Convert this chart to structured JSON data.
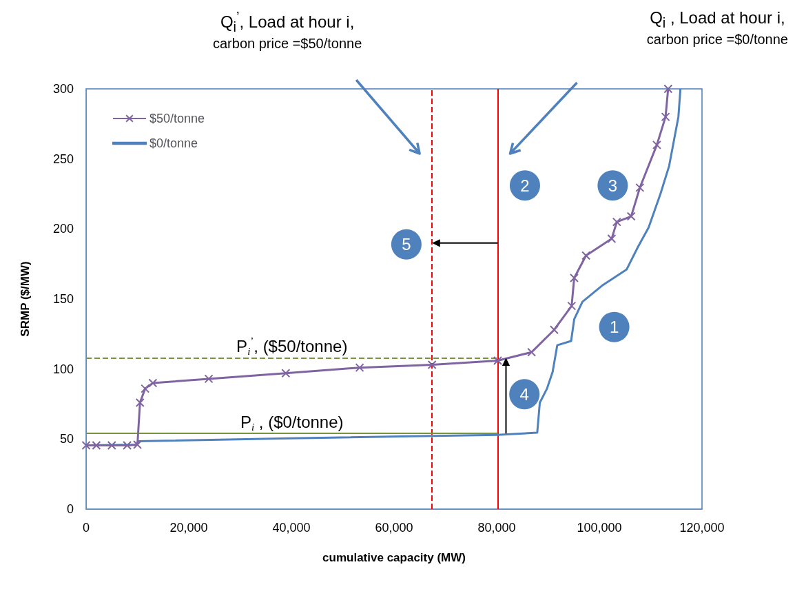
{
  "chart_data": {
    "type": "line",
    "xlabel": "cumulative capacity (MW)",
    "ylabel": "SRMP ($/MW)",
    "xlim": [
      0,
      120000
    ],
    "xticks": [
      0,
      {
        "value": 20000,
        "label": "20,000"
      },
      {
        "value": 40000,
        "label": "40,000"
      },
      {
        "value": 60000,
        "label": "60,000"
      },
      {
        "value": 80000,
        "label": "80,000"
      },
      {
        "value": 100000,
        "label": "100,000"
      },
      {
        "value": 120000,
        "label": "120,000"
      }
    ],
    "ylim": [
      0,
      300
    ],
    "yticks": [
      0,
      50,
      100,
      150,
      200,
      250,
      300
    ],
    "grid": false,
    "legend": "top left",
    "series": [
      {
        "name": "$50/tonne",
        "color": "#8064a2",
        "marker": "cross",
        "x": [
          0,
          2000,
          5000,
          8000,
          10000,
          10500,
          11500,
          13000,
          23900,
          38900,
          53300,
          67400,
          80200,
          86800,
          91200,
          94600,
          95100,
          97400,
          102400,
          103400,
          106200,
          107900,
          111200,
          112900,
          113400
        ],
        "values": [
          45.5,
          45.5,
          45.5,
          45.5,
          46,
          76,
          86,
          90,
          93,
          97,
          101,
          103,
          106,
          112,
          128,
          145,
          165,
          181,
          193,
          205,
          209,
          229.5,
          260,
          280,
          300
        ]
      },
      {
        "name": "$0/tonne",
        "color": "#4f81bd",
        "marker": "none",
        "x": [
          0,
          10000,
          10100,
          40000,
          80200,
          87900,
          88400,
          89800,
          90900,
          91800,
          94500,
          95100,
          96700,
          100700,
          105300,
          107500,
          109600,
          111900,
          113600,
          115400,
          115800
        ],
        "values": [
          45.5,
          46,
          48.4,
          50.5,
          53,
          54.6,
          76,
          86,
          98,
          117,
          120,
          135.5,
          148,
          160,
          171,
          187,
          201,
          225,
          245,
          280,
          300
        ]
      }
    ],
    "ref_lines": [
      {
        "axis": "x",
        "value": 67400,
        "color": "#ff0000",
        "line_style": "dashed"
      },
      {
        "axis": "x",
        "value": 80200,
        "color": "#ff0000",
        "line_style": "solid"
      },
      {
        "axis": "y",
        "value": 108,
        "label": "P$_{i}$$^{’}$, ($50/tonne)",
        "color": "#77933c",
        "line_style": "dashed"
      },
      {
        "axis": "y",
        "value": 54,
        "label": "P$_{i}$ , ($0/tonne)",
        "color": "#77933c",
        "line_style": "solid"
      }
    ],
    "annotations": [
      "Q$_{i}$$^{’}$, Load at hour i,\ncarbon price =$50/tonne",
      "Q$_{i}$ , Load at hour i,\ncarbon price =$0/tonne",
      {
        "text": "1",
        "x": 102900,
        "y": 130
      },
      {
        "text": "2",
        "x": 85500,
        "y": 231
      },
      {
        "text": "3",
        "x": 102600,
        "y": 231
      },
      {
        "text": "4",
        "x": 85400,
        "y": 82
      },
      {
        "text": "5",
        "x": 62400,
        "y": 189
      }
    ]
  }
}
